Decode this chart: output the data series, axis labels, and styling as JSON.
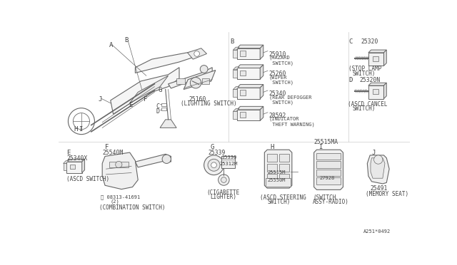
{
  "bg_color": "#ffffff",
  "line_color": "#666666",
  "dark_color": "#444444",
  "fs_label": 6.5,
  "fs_part": 5.8,
  "fs_caption": 5.5,
  "fs_tiny": 5.0,
  "footer": "A251*0492",
  "B_parts": [
    {
      "num": "25910",
      "name": "(HAZARD\n SWITCH)"
    },
    {
      "num": "25260",
      "name": "(WIPER\n SWITCH)"
    },
    {
      "num": "25340",
      "name": "(REAR DEFOGGER\n SWITCH)"
    },
    {
      "num": "28592",
      "name": "(INDICATOR\n THEFT WARNING)"
    }
  ]
}
